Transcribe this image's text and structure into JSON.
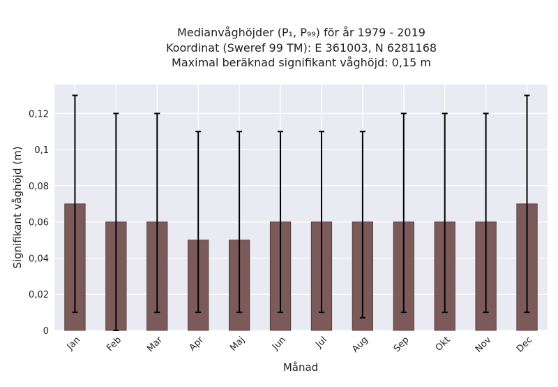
{
  "chart_data": {
    "type": "bar",
    "title_lines": [
      "Medianvåghöjder (P₁, P₉₉) för år 1979 - 2019",
      "Koordinat (Sweref 99 TM): E 361003, N 6281168",
      "Maximal beräknad signifikant våghöjd: 0,15 m"
    ],
    "xlabel": "Månad",
    "ylabel": "Signifikant våghöjd (m)",
    "categories": [
      "Jan",
      "Feb",
      "Mar",
      "Apr",
      "Maj",
      "Jun",
      "Jul",
      "Aug",
      "Sep",
      "Okt",
      "Nov",
      "Dec"
    ],
    "values": [
      0.07,
      0.06,
      0.06,
      0.05,
      0.05,
      0.06,
      0.06,
      0.06,
      0.06,
      0.06,
      0.06,
      0.07
    ],
    "error_low": [
      0.01,
      0.0,
      0.01,
      0.01,
      0.01,
      0.01,
      0.01,
      0.007,
      0.01,
      0.01,
      0.01,
      0.01
    ],
    "error_high": [
      0.13,
      0.12,
      0.12,
      0.11,
      0.11,
      0.11,
      0.11,
      0.11,
      0.12,
      0.12,
      0.12,
      0.13
    ],
    "ylim": [
      0,
      0.136
    ],
    "yticks": [
      0,
      0.02,
      0.04,
      0.06,
      0.08,
      0.1,
      0.12
    ],
    "ytick_labels": [
      "0",
      "0,02",
      "0,04",
      "0,06",
      "0,08",
      "0,1",
      "0,12"
    ],
    "grid": true,
    "colors": {
      "background": "#eaeaf2",
      "grid": "#ffffff",
      "bar": "#7d5a5a",
      "bar_edge": "#4a3434",
      "errorbar": "#000000"
    }
  }
}
